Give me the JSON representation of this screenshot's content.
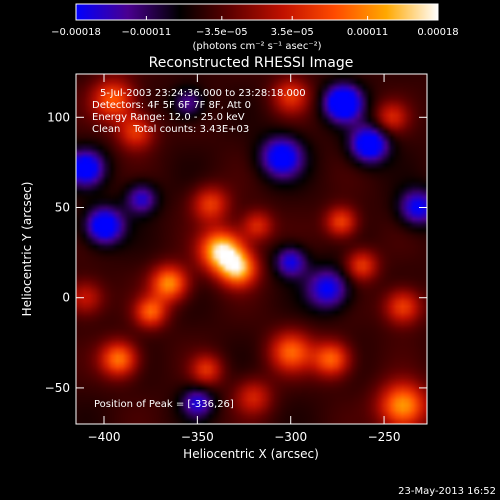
{
  "chart_data": {
    "type": "heatmap",
    "title": "Reconstructed RHESSI Image",
    "xlabel": "Heliocentric X (arcsec)",
    "ylabel": "Heliocentric Y (arcsec)",
    "xlim": [
      -415,
      -227
    ],
    "ylim": [
      -70,
      124
    ],
    "x_ticks": [
      {
        "value": -400,
        "label": "−400"
      },
      {
        "value": -350,
        "label": "−350"
      },
      {
        "value": -300,
        "label": "−300"
      },
      {
        "value": -250,
        "label": "−250"
      }
    ],
    "y_ticks": [
      {
        "value": -50,
        "label": "−50"
      },
      {
        "value": 0,
        "label": "0"
      },
      {
        "value": 50,
        "label": "50"
      },
      {
        "value": 100,
        "label": "100"
      }
    ],
    "colorbar": {
      "range": [
        -0.00018,
        0.00018
      ],
      "tick_values": [
        -0.00018,
        -0.00011,
        -3.5e-05,
        3.5e-05,
        0.00011,
        0.00018
      ],
      "tick_labels": [
        "−0.00018",
        "−0.00011",
        "−3.5e−05",
        "3.5e−05",
        "0.00011",
        "0.00018"
      ],
      "unit_label": "(photons cm⁻² s⁻¹ asec⁻²)",
      "colors": [
        "#0000ff",
        "#4a0090",
        "#000000",
        "#600000",
        "#c01000",
        "#ff4a00",
        "#ffa800",
        "#ffffff"
      ]
    },
    "annotations": [
      "5-Jul-2003 23:24:36.000 to 23:28:18.000",
      "Detectors: 4F 5F 6F 7F 8F, Att 0",
      "Energy Range: 12.0 - 25.0 keV",
      "Clean    Total counts: 3.43E+03"
    ],
    "peak_label": "Position of Peak = [-336,26]",
    "peak": [
      -336,
      26
    ],
    "blobs": [
      {
        "x": -337,
        "y": 26,
        "s": 8,
        "a": 1.0
      },
      {
        "x": -328,
        "y": 16,
        "s": 7,
        "a": 0.8
      },
      {
        "x": -365,
        "y": 8,
        "s": 7,
        "a": 0.75
      },
      {
        "x": -375,
        "y": -8,
        "s": 6,
        "a": 0.6
      },
      {
        "x": -343,
        "y": 52,
        "s": 7,
        "a": 0.5
      },
      {
        "x": -318,
        "y": 40,
        "s": 6,
        "a": 0.45
      },
      {
        "x": -300,
        "y": -30,
        "s": 8,
        "a": 0.6
      },
      {
        "x": -278,
        "y": -34,
        "s": 7,
        "a": 0.65
      },
      {
        "x": -240,
        "y": -60,
        "s": 9,
        "a": 0.8
      },
      {
        "x": -392,
        "y": -34,
        "s": 7,
        "a": 0.7
      },
      {
        "x": -395,
        "y": 110,
        "s": 8,
        "a": 0.6
      },
      {
        "x": -383,
        "y": 92,
        "s": 7,
        "a": 0.5
      },
      {
        "x": -300,
        "y": 112,
        "s": 7,
        "a": 0.45
      },
      {
        "x": -273,
        "y": 42,
        "s": 6,
        "a": 0.55
      },
      {
        "x": -262,
        "y": 18,
        "s": 6,
        "a": 0.5
      },
      {
        "x": -240,
        "y": -5,
        "s": 7,
        "a": 0.55
      },
      {
        "x": -246,
        "y": 100,
        "s": 6,
        "a": 0.4
      },
      {
        "x": -410,
        "y": 0,
        "s": 7,
        "a": 0.4
      },
      {
        "x": -345,
        "y": -40,
        "s": 6,
        "a": 0.45
      },
      {
        "x": -320,
        "y": -55,
        "s": 7,
        "a": 0.4
      },
      {
        "x": -258,
        "y": 85,
        "s": 7,
        "a": -0.8
      },
      {
        "x": -272,
        "y": 108,
        "s": 7,
        "a": -0.9
      },
      {
        "x": -305,
        "y": 78,
        "s": 8,
        "a": -0.7
      },
      {
        "x": -400,
        "y": 40,
        "s": 7,
        "a": -0.8
      },
      {
        "x": -410,
        "y": 72,
        "s": 7,
        "a": -0.7
      },
      {
        "x": -280,
        "y": 5,
        "s": 8,
        "a": -0.6
      },
      {
        "x": -300,
        "y": 20,
        "s": 6,
        "a": -0.55
      },
      {
        "x": -350,
        "y": -58,
        "s": 6,
        "a": -0.5
      },
      {
        "x": -232,
        "y": 50,
        "s": 7,
        "a": -0.6
      },
      {
        "x": -380,
        "y": 55,
        "s": 6,
        "a": -0.5
      },
      {
        "x": -355,
        "y": 108,
        "s": 6,
        "a": -0.4
      }
    ]
  },
  "timestamp": "23-May-2013 16:52"
}
